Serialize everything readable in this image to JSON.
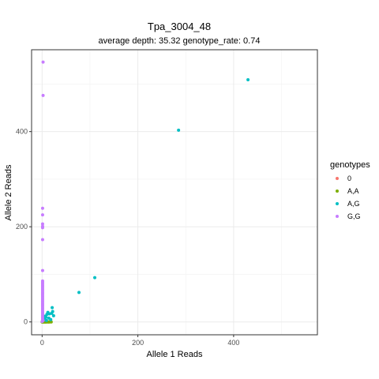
{
  "chart_data": {
    "type": "scatter",
    "title": "Tpa_3004_48",
    "subtitle": "average depth:  35.32  genotype_rate:  0.74",
    "xlabel": "Allele 1 Reads",
    "ylabel": "Allele 2 Reads",
    "xlim": [
      -22,
      575
    ],
    "ylim": [
      -27,
      572
    ],
    "x_ticks": [
      0,
      200,
      400
    ],
    "y_ticks": [
      0,
      200,
      400
    ],
    "grid": true,
    "legend_title": "genotypes",
    "legend_position": "right",
    "series": [
      {
        "name": "0",
        "color": "#F8766D",
        "points": []
      },
      {
        "name": "A,A",
        "color": "#7CAE00",
        "points": [
          [
            0,
            0
          ],
          [
            1,
            0
          ],
          [
            2,
            0
          ],
          [
            3,
            0
          ],
          [
            4,
            0
          ],
          [
            5,
            0
          ],
          [
            6,
            0
          ],
          [
            7,
            0
          ],
          [
            8,
            0
          ],
          [
            9,
            0
          ],
          [
            11,
            0
          ],
          [
            13,
            0
          ],
          [
            14,
            0
          ],
          [
            16,
            0
          ],
          [
            19,
            0
          ]
        ]
      },
      {
        "name": "A,G",
        "color": "#00BFC4",
        "points": [
          [
            430,
            509
          ],
          [
            285,
            403
          ],
          [
            110,
            93
          ],
          [
            77,
            62
          ],
          [
            21,
            30
          ],
          [
            22,
            22
          ],
          [
            20,
            18
          ],
          [
            24,
            13
          ],
          [
            15,
            17
          ],
          [
            12,
            20
          ],
          [
            10,
            16
          ],
          [
            8,
            10
          ],
          [
            6,
            5
          ],
          [
            5,
            12
          ],
          [
            14,
            8
          ],
          [
            18,
            5
          ],
          [
            9,
            3
          ],
          [
            3,
            8
          ]
        ]
      },
      {
        "name": "G,G",
        "color": "#C77CFF",
        "points": [
          [
            2,
            546
          ],
          [
            2,
            476
          ],
          [
            1,
            239
          ],
          [
            1,
            225
          ],
          [
            1,
            206
          ],
          [
            1,
            201
          ],
          [
            1,
            198
          ],
          [
            1,
            173
          ],
          [
            1,
            108
          ],
          [
            1,
            86
          ],
          [
            1,
            83
          ],
          [
            1,
            80
          ],
          [
            1,
            77
          ],
          [
            1,
            74
          ],
          [
            1,
            71
          ],
          [
            1,
            68
          ],
          [
            1,
            65
          ],
          [
            1,
            62
          ],
          [
            1,
            59
          ],
          [
            1,
            56
          ],
          [
            1,
            53
          ],
          [
            1,
            50
          ],
          [
            1,
            47
          ],
          [
            1,
            44
          ],
          [
            1,
            41
          ],
          [
            1,
            38
          ],
          [
            1,
            35
          ],
          [
            1,
            32
          ],
          [
            1,
            29
          ],
          [
            1,
            26
          ],
          [
            1,
            23
          ],
          [
            1,
            20
          ],
          [
            1,
            17
          ],
          [
            1,
            14
          ],
          [
            1,
            11
          ],
          [
            1,
            8
          ],
          [
            1,
            5
          ],
          [
            2,
            3
          ],
          [
            1,
            2
          ],
          [
            0,
            1
          ]
        ]
      }
    ]
  }
}
